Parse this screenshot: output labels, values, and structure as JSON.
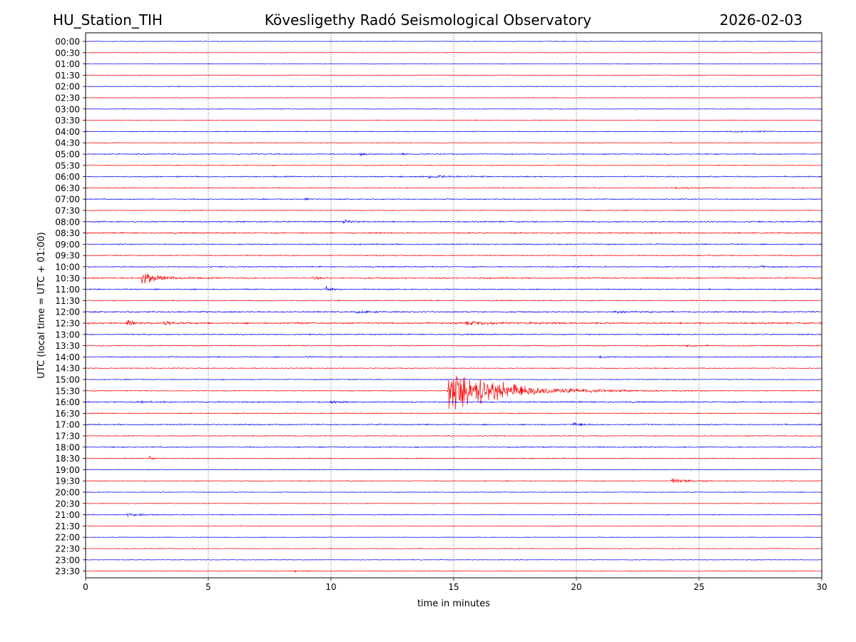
{
  "header": {
    "station": "HU_Station_TIH",
    "observatory": "Kövesligethy Radó Seismological Observatory",
    "date": "2026-02-03"
  },
  "chart_data": {
    "type": "helicorder",
    "title": "Kövesligethy Radó Seismological Observatory",
    "xlabel": "time in minutes",
    "ylabel": "UTC (local time = UTC + 01:00)",
    "xlim": [
      0,
      30
    ],
    "x_ticks": [
      0,
      5,
      10,
      15,
      20,
      25,
      30
    ],
    "x_gridlines": [
      5,
      10,
      15,
      20,
      25
    ],
    "colors": {
      "even_trace": "#0000ff",
      "odd_trace": "#ff0000"
    },
    "rows": [
      "00:00",
      "00:30",
      "01:00",
      "01:30",
      "02:00",
      "02:30",
      "03:00",
      "03:30",
      "04:00",
      "04:30",
      "05:00",
      "05:30",
      "06:00",
      "06:30",
      "07:00",
      "07:30",
      "08:00",
      "08:30",
      "09:00",
      "09:30",
      "10:00",
      "10:30",
      "11:00",
      "11:30",
      "12:00",
      "12:30",
      "13:00",
      "13:30",
      "14:00",
      "14:30",
      "15:00",
      "15:30",
      "16:00",
      "16:30",
      "17:00",
      "17:30",
      "18:00",
      "18:30",
      "19:00",
      "19:30",
      "20:00",
      "20:30",
      "21:00",
      "21:30",
      "22:00",
      "22:30",
      "23:00",
      "23:30"
    ],
    "noise": [
      0.3,
      0.35,
      0.3,
      0.35,
      0.4,
      0.35,
      0.35,
      0.4,
      0.45,
      0.4,
      0.55,
      0.45,
      0.6,
      0.5,
      0.5,
      0.45,
      0.7,
      0.7,
      0.6,
      0.55,
      0.6,
      0.7,
      0.6,
      0.55,
      0.7,
      0.9,
      0.6,
      0.55,
      0.55,
      0.5,
      0.45,
      0.45,
      0.7,
      0.55,
      0.6,
      0.5,
      0.55,
      0.5,
      0.4,
      0.45,
      0.4,
      0.35,
      0.45,
      0.35,
      0.35,
      0.4,
      0.35,
      0.35
    ],
    "events": [
      {
        "row": "01:30",
        "t": 2.2,
        "amp": 1.2,
        "dur": 0.4
      },
      {
        "row": "04:00",
        "t": 26.4,
        "amp": 1.5,
        "dur": 0.6
      },
      {
        "row": "04:00",
        "t": 27.4,
        "amp": 1.6,
        "dur": 0.5
      },
      {
        "row": "05:00",
        "t": 11.2,
        "amp": 2.0,
        "dur": 0.5
      },
      {
        "row": "05:00",
        "t": 12.9,
        "amp": 2.0,
        "dur": 0.2
      },
      {
        "row": "06:00",
        "t": 14.0,
        "amp": 2.2,
        "dur": 1.5
      },
      {
        "row": "06:30",
        "t": 24.0,
        "amp": 1.2,
        "dur": 1.5
      },
      {
        "row": "07:00",
        "t": 8.95,
        "amp": 4.0,
        "dur": 0.2
      },
      {
        "row": "08:00",
        "t": 10.5,
        "amp": 3.0,
        "dur": 0.6
      },
      {
        "row": "10:00",
        "t": 27.5,
        "amp": 1.8,
        "dur": 0.5
      },
      {
        "row": "10:30",
        "t": 2.3,
        "amp": 12.0,
        "dur": 1.0
      },
      {
        "row": "10:30",
        "t": 9.3,
        "amp": 2.5,
        "dur": 0.3
      },
      {
        "row": "11:00",
        "t": 9.8,
        "amp": 5.0,
        "dur": 0.3
      },
      {
        "row": "12:00",
        "t": 11.0,
        "amp": 2.0,
        "dur": 1.2
      },
      {
        "row": "12:00",
        "t": 21.5,
        "amp": 1.5,
        "dur": 1.5
      },
      {
        "row": "12:30",
        "t": 1.7,
        "amp": 5.0,
        "dur": 0.3
      },
      {
        "row": "12:30",
        "t": 3.2,
        "amp": 3.0,
        "dur": 0.6
      },
      {
        "row": "12:30",
        "t": 15.5,
        "amp": 2.5,
        "dur": 2.5
      },
      {
        "row": "13:30",
        "t": 24.5,
        "amp": 1.5,
        "dur": 1.0
      },
      {
        "row": "14:00",
        "t": 21.0,
        "amp": 4.0,
        "dur": 0.2
      },
      {
        "row": "14:00",
        "t": 9.0,
        "amp": 2.5,
        "dur": 0.2
      },
      {
        "row": "15:30",
        "t": 14.8,
        "amp": 38.0,
        "dur": 3.5
      },
      {
        "row": "16:00",
        "t": 2.2,
        "amp": 2.0,
        "dur": 0.6
      },
      {
        "row": "16:00",
        "t": 10.0,
        "amp": 2.0,
        "dur": 0.5
      },
      {
        "row": "17:00",
        "t": 19.9,
        "amp": 2.5,
        "dur": 0.8
      },
      {
        "row": "18:30",
        "t": 2.6,
        "amp": 3.0,
        "dur": 0.3
      },
      {
        "row": "19:30",
        "t": 23.9,
        "amp": 4.0,
        "dur": 1.0
      },
      {
        "row": "21:00",
        "t": 1.7,
        "amp": 2.5,
        "dur": 1.0
      },
      {
        "row": "23:30",
        "t": 8.5,
        "amp": 1.6,
        "dur": 1.0
      }
    ]
  }
}
